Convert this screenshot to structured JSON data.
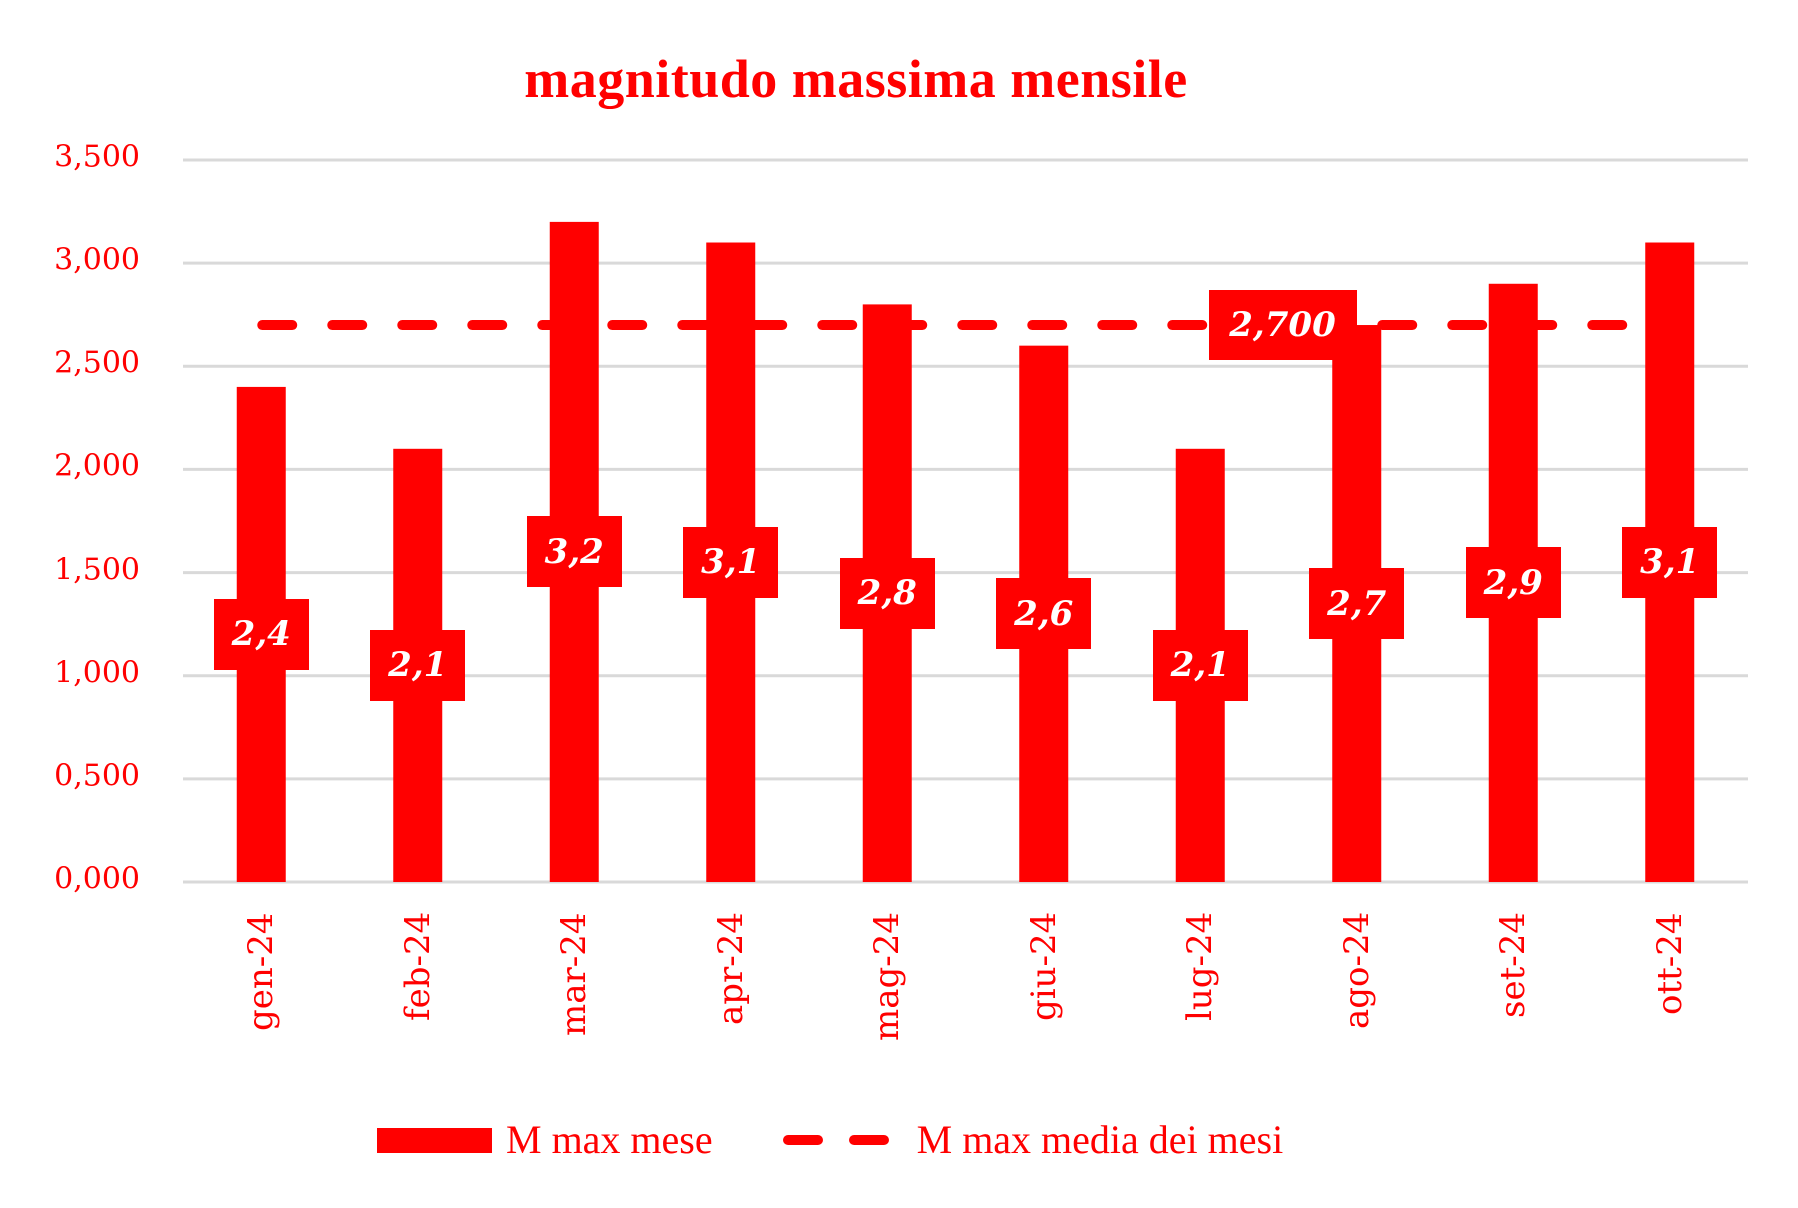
{
  "chart": {
    "title": "magnitudo massima mensile",
    "legend": {
      "bar_label": "M max mese",
      "line_label": "M max media dei mesi"
    },
    "average_label": "2,700"
  },
  "colors": {
    "bar": "#ff0000",
    "line": "#ff0000",
    "text": "#ff0000",
    "label_text": "#ffffff",
    "grid": "#d9d9d9",
    "background": "#ffffff"
  },
  "chart_data": {
    "type": "bar",
    "title": "magnitudo massima mensile",
    "xlabel": "",
    "ylabel": "",
    "categories": [
      "gen-24",
      "feb-24",
      "mar-24",
      "apr-24",
      "mag-24",
      "giu-24",
      "lug-24",
      "ago-24",
      "set-24",
      "ott-24"
    ],
    "series": [
      {
        "name": "M max mese",
        "type": "bar",
        "values": [
          2.4,
          2.1,
          3.2,
          3.1,
          2.8,
          2.6,
          2.1,
          2.7,
          2.9,
          3.1
        ],
        "data_labels": [
          "2,4",
          "2,1",
          "3,2",
          "3,1",
          "2,8",
          "2,6",
          "2,1",
          "2,7",
          "2,9",
          "3,1"
        ]
      },
      {
        "name": "M max media dei mesi",
        "type": "line",
        "style": "dashed",
        "values": [
          2.7,
          2.7,
          2.7,
          2.7,
          2.7,
          2.7,
          2.7,
          2.7,
          2.7,
          2.7
        ],
        "data_label": "2,700"
      }
    ],
    "ylim": [
      0,
      3.5
    ],
    "yticks": [
      0,
      0.5,
      1.0,
      1.5,
      2.0,
      2.5,
      3.0,
      3.5
    ],
    "ytick_labels": [
      "0,000",
      "0,500",
      "1,000",
      "1,500",
      "2,000",
      "2,500",
      "3,000",
      "3,500"
    ],
    "grid": true,
    "legend_position": "bottom"
  }
}
